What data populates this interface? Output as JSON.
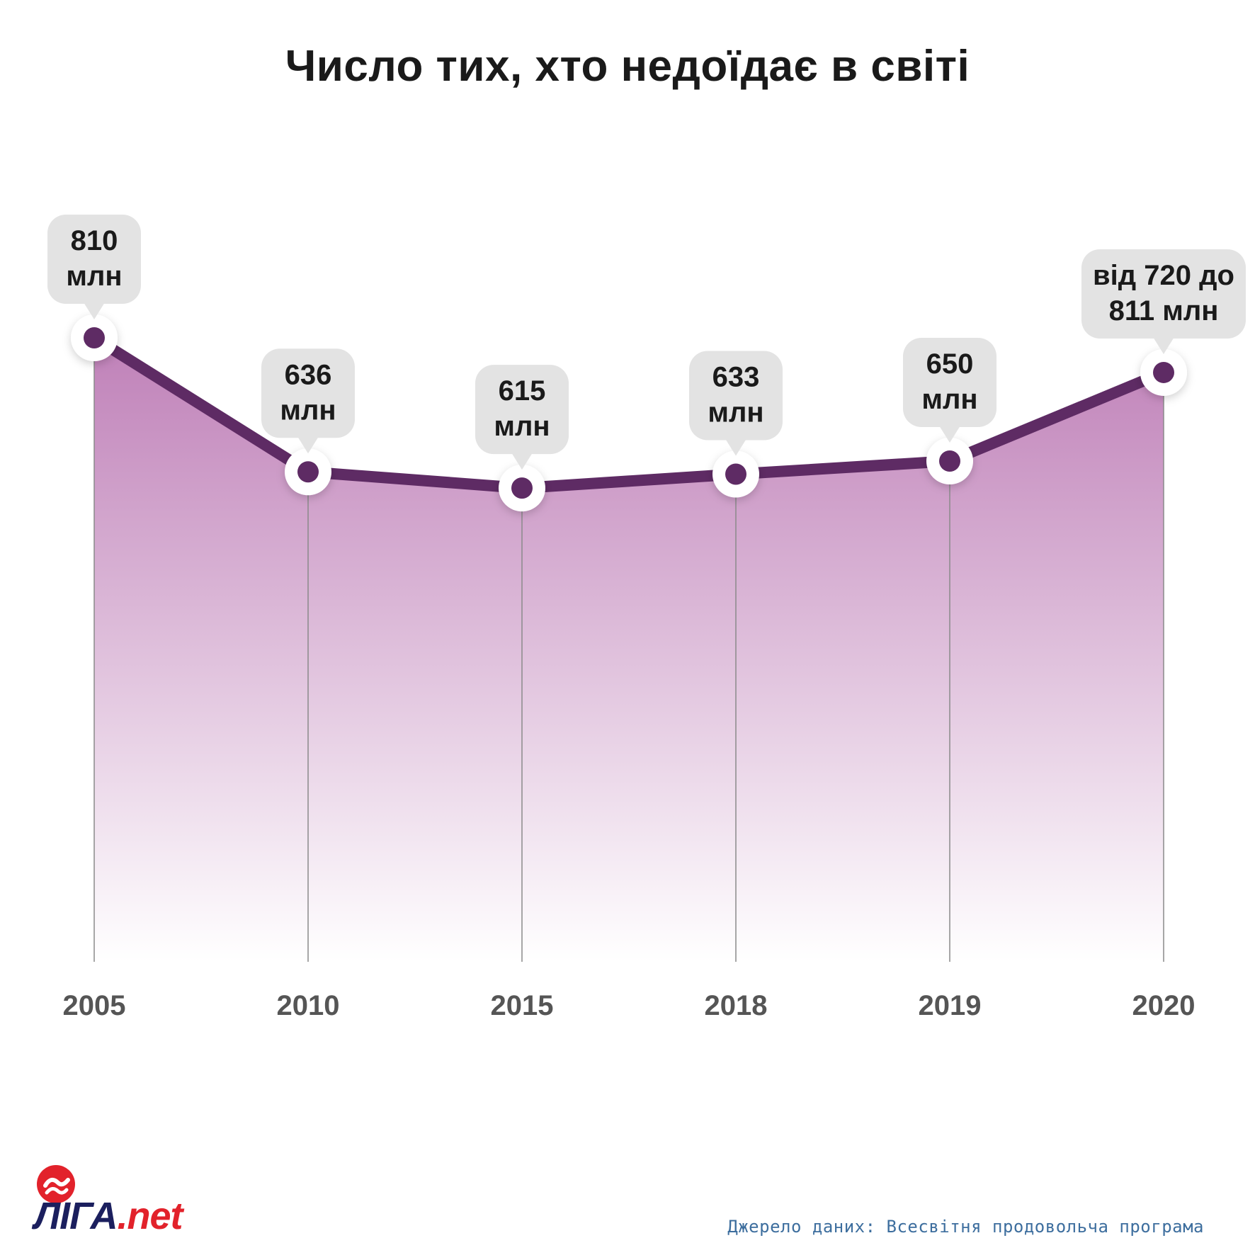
{
  "chart_data": {
    "type": "area",
    "title": "Число тих, хто недоїдає в світі",
    "categories": [
      "2005",
      "2010",
      "2015",
      "2018",
      "2019",
      "2020"
    ],
    "series": [
      {
        "values": [
          810,
          636,
          615,
          633,
          650,
          765
        ]
      }
    ],
    "point_labels": [
      [
        "810",
        "млн"
      ],
      [
        "636",
        "млн"
      ],
      [
        "615",
        "млн"
      ],
      [
        "633",
        "млн"
      ],
      [
        "650",
        "млн"
      ],
      [
        "від 720 до",
        "811 млн"
      ]
    ],
    "ylim": [
      0,
      810
    ],
    "grid": false,
    "colors": {
      "line": "#5e2b64",
      "fill_top": "#bf80b8",
      "fill_bottom": "#ffffff",
      "bubble": "#e3e3e3",
      "marker": "#5e2b64"
    }
  },
  "logo": {
    "brand": "ЛІГА",
    "suffix": ".net",
    "icon": "liga-logo-icon",
    "colors": {
      "brand": "#1b1f5e",
      "accent": "#e2222b"
    }
  },
  "source": "Джерело даних: Всесвітня продовольча програма"
}
